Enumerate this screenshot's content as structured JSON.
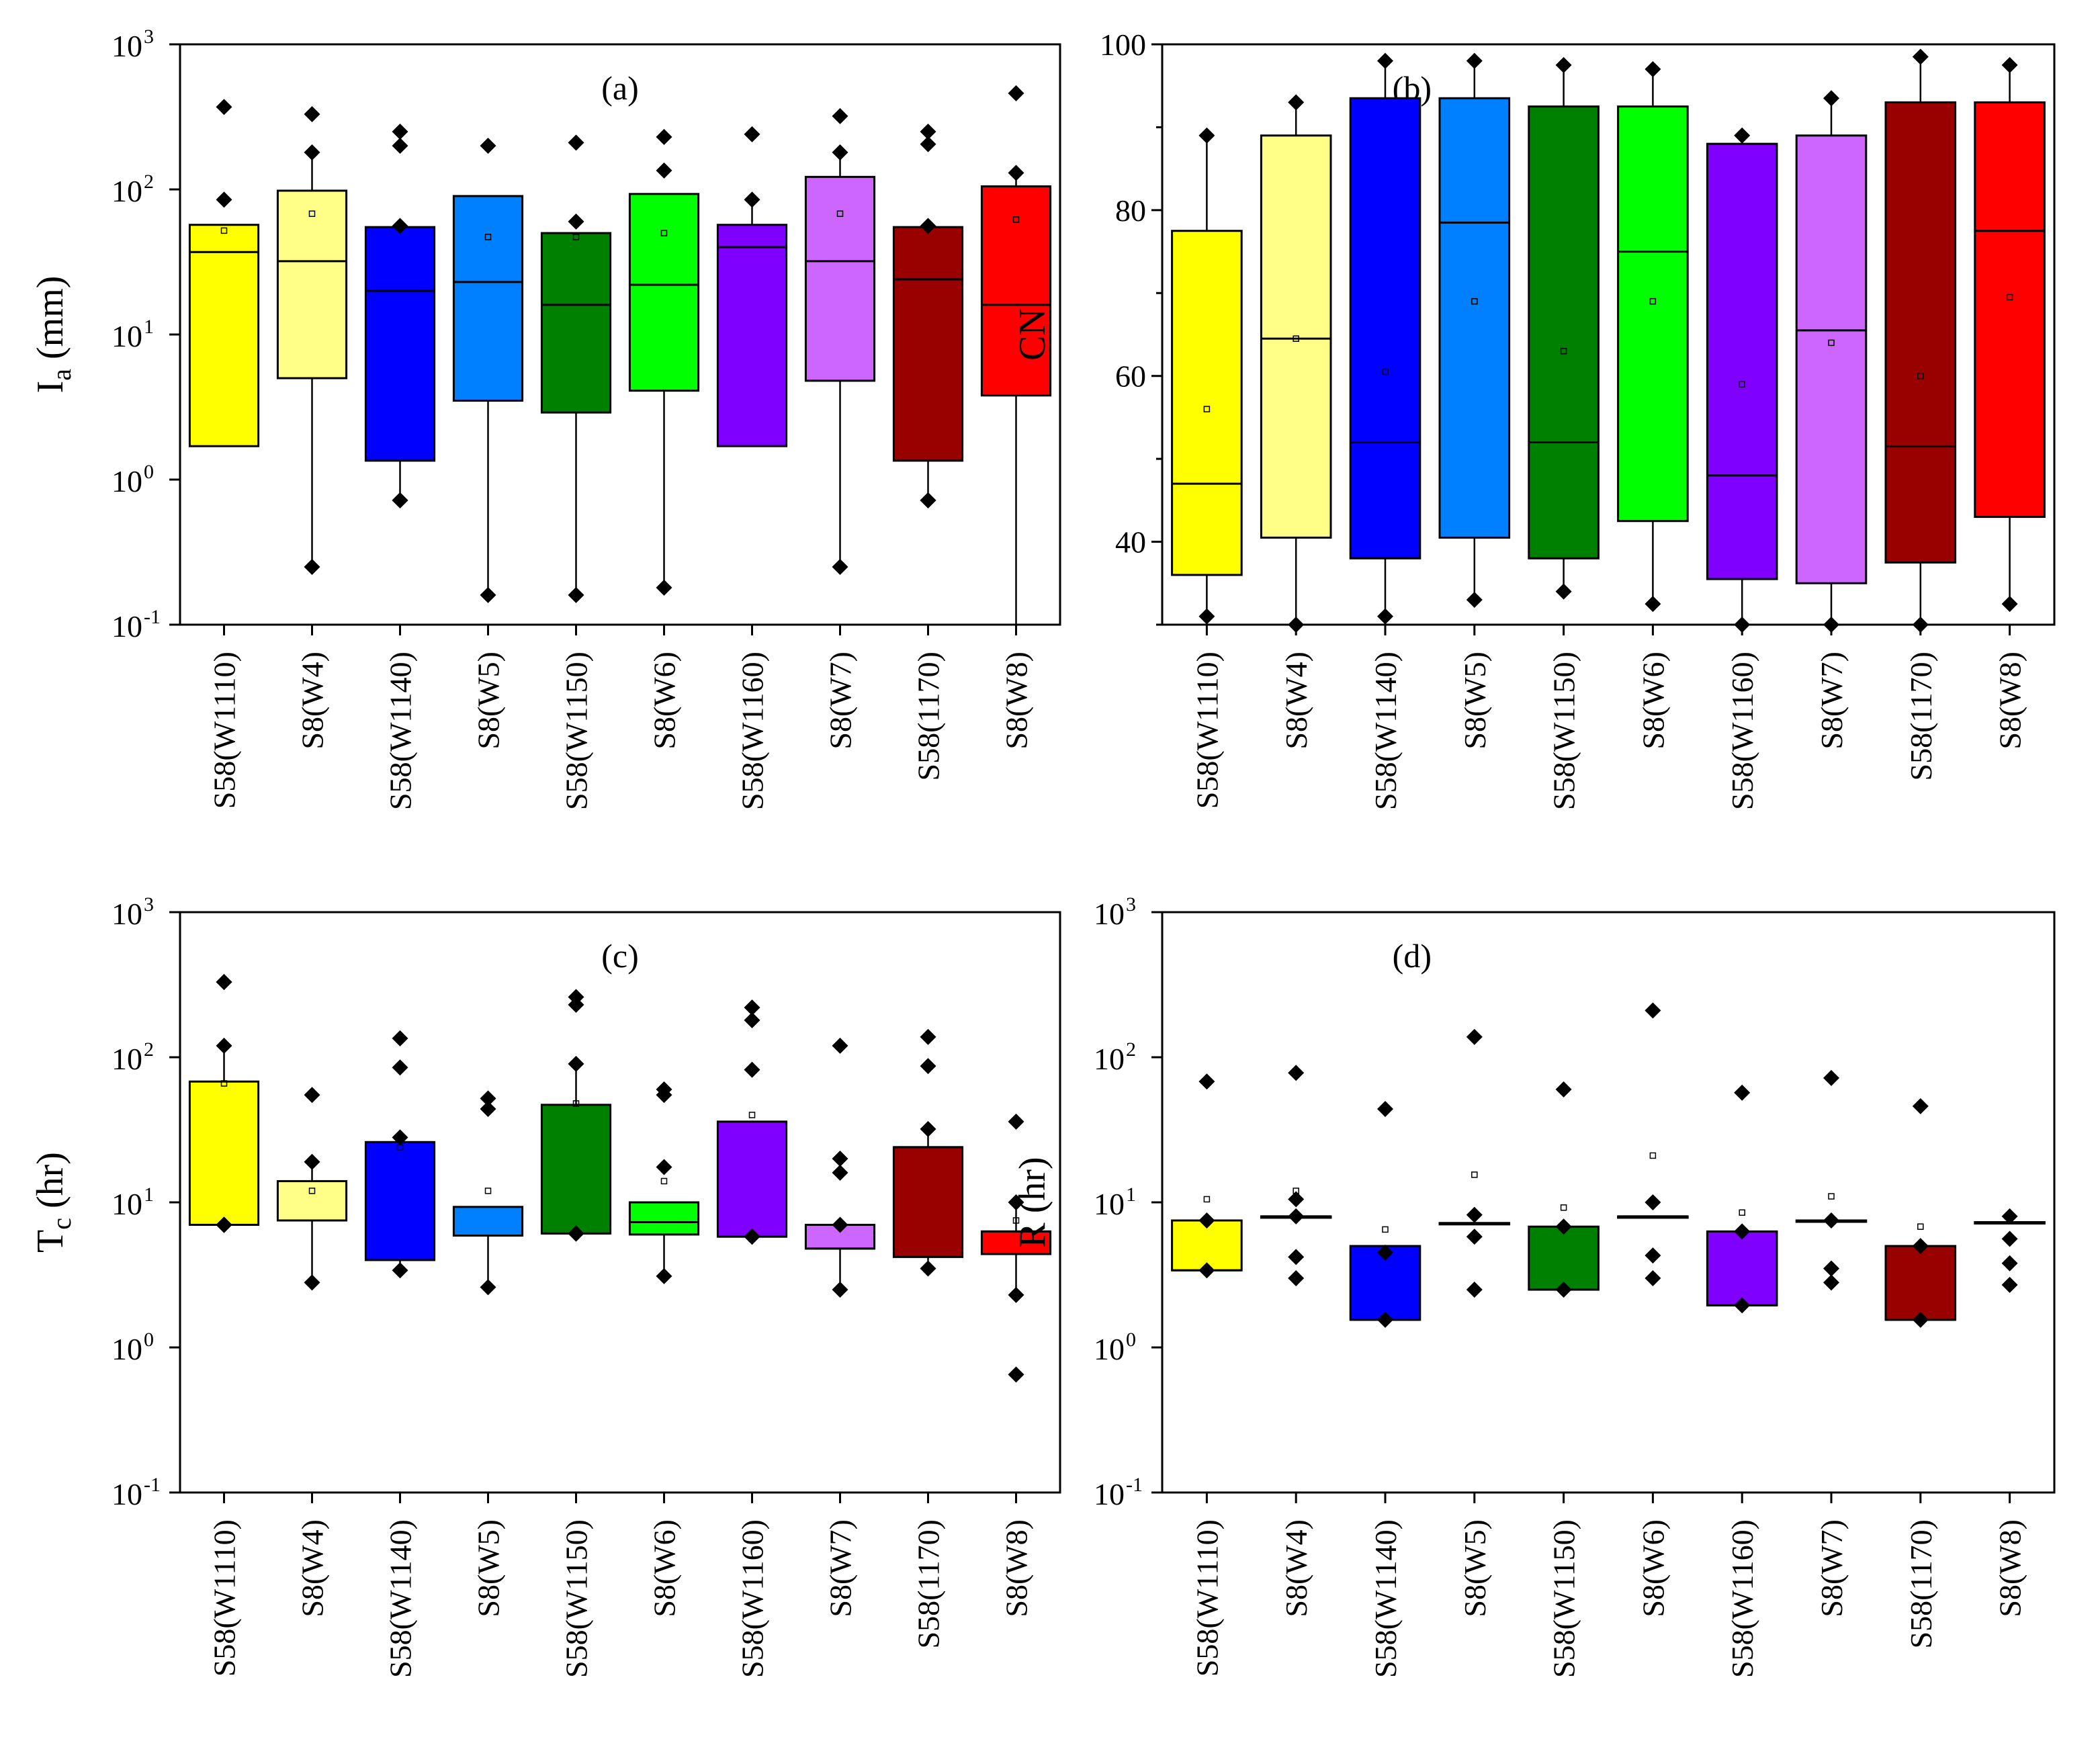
{
  "figure": {
    "categories": [
      "S58(W1110)",
      "S8(W4)",
      "S58(W1140)",
      "S8(W5)",
      "S58(W1150)",
      "S8(W6)",
      "S58(W1160)",
      "S8(W7)",
      "S58(1170)",
      "S8(W8)"
    ],
    "colors": [
      "#ffff00",
      "#ffff88",
      "#0000ff",
      "#0080ff",
      "#008000",
      "#00ff00",
      "#8000ff",
      "#cc66ff",
      "#990000",
      "#ff0000"
    ]
  },
  "chart_data": [
    {
      "id": "a",
      "type": "box",
      "panel_label": "(a)",
      "ylabel_main": "I",
      "ylabel_sub": "a",
      "ylabel_rest": " (mm)",
      "yscale": "log",
      "ylim": [
        0.1,
        1000
      ],
      "yticks": [
        {
          "base": "10",
          "exp": "-1"
        },
        {
          "base": "10",
          "exp": "0"
        },
        {
          "base": "10",
          "exp": "1"
        },
        {
          "base": "10",
          "exp": "2"
        },
        {
          "base": "10",
          "exp": "3"
        }
      ],
      "boxes": [
        {
          "q1": 1.7,
          "median": 37,
          "q3": 57,
          "mean": 52,
          "wlo": 1.7,
          "whi": 57,
          "points": [
            85,
            370
          ]
        },
        {
          "q1": 5,
          "median": 32,
          "q3": 98,
          "mean": 68,
          "wlo": 0.25,
          "whi": 180,
          "points": [
            0.25,
            180,
            330
          ]
        },
        {
          "q1": 1.35,
          "median": 20,
          "q3": 55,
          "mean": null,
          "wlo": 0.75,
          "whi": 55,
          "points": [
            0.72,
            0.72,
            56,
            200,
            250
          ]
        },
        {
          "q1": 3.5,
          "median": 23,
          "q3": 90,
          "mean": 47,
          "wlo": 0.16,
          "whi": 90,
          "points": [
            0.16,
            200
          ]
        },
        {
          "q1": 2.9,
          "median": 16,
          "q3": 50,
          "mean": 47,
          "wlo": 0.16,
          "whi": 50,
          "points": [
            0.16,
            60,
            210
          ]
        },
        {
          "q1": 4.1,
          "median": 22,
          "q3": 93,
          "mean": 50,
          "wlo": 0.18,
          "whi": 93,
          "points": [
            0.18,
            135,
            230
          ]
        },
        {
          "q1": 1.7,
          "median": 40,
          "q3": 57,
          "mean": null,
          "wlo": 1.7,
          "whi": 85,
          "points": [
            85,
            240
          ]
        },
        {
          "q1": 4.8,
          "median": 32,
          "q3": 122,
          "mean": 68,
          "wlo": 0.25,
          "whi": 180,
          "points": [
            0.25,
            180,
            320
          ]
        },
        {
          "q1": 1.35,
          "median": 24,
          "q3": 55,
          "mean": null,
          "wlo": 0.75,
          "whi": 55,
          "points": [
            0.72,
            0.72,
            56,
            205,
            250
          ]
        },
        {
          "q1": 3.8,
          "median": 16,
          "q3": 105,
          "mean": 62,
          "wlo": 0.1,
          "whi": 130,
          "points": [
            130,
            460
          ]
        }
      ]
    },
    {
      "id": "b",
      "type": "box",
      "panel_label": "(b)",
      "ylabel_main": "CN",
      "ylabel_sub": "",
      "ylabel_rest": "",
      "yscale": "linear",
      "ylim": [
        30,
        100
      ],
      "yticks": [
        {
          "base": "40",
          "exp": ""
        },
        {
          "base": "60",
          "exp": ""
        },
        {
          "base": "80",
          "exp": ""
        },
        {
          "base": "100",
          "exp": ""
        }
      ],
      "boxes": [
        {
          "q1": 36,
          "median": 47,
          "q3": 77.5,
          "mean": 56,
          "wlo": 31,
          "whi": 89,
          "points": [
            31,
            89
          ]
        },
        {
          "q1": 40.5,
          "median": 64.5,
          "q3": 89,
          "mean": 64.5,
          "wlo": 30,
          "whi": 93,
          "points": [
            30,
            93
          ]
        },
        {
          "q1": 38,
          "median": 52,
          "q3": 93.5,
          "mean": 60.5,
          "wlo": 31,
          "whi": 98,
          "points": [
            31,
            98
          ]
        },
        {
          "q1": 40.5,
          "median": 78.5,
          "q3": 93.5,
          "mean": 69,
          "wlo": 33,
          "whi": 98,
          "points": [
            33,
            98
          ]
        },
        {
          "q1": 38,
          "median": 52,
          "q3": 92.5,
          "mean": 63,
          "wlo": 34,
          "whi": 97.5,
          "points": [
            34,
            97.5
          ]
        },
        {
          "q1": 42.5,
          "median": 75,
          "q3": 92.5,
          "mean": 69,
          "wlo": 33,
          "whi": 97,
          "points": [
            32.5,
            97
          ]
        },
        {
          "q1": 35.5,
          "median": 48,
          "q3": 88,
          "mean": 59,
          "wlo": 30,
          "whi": 89,
          "points": [
            30,
            89
          ]
        },
        {
          "q1": 35,
          "median": 65.5,
          "q3": 89,
          "mean": 64,
          "wlo": 30,
          "whi": 93.5,
          "points": [
            30,
            93.5
          ]
        },
        {
          "q1": 37.5,
          "median": 51.5,
          "q3": 93,
          "mean": 60,
          "wlo": 30,
          "whi": 98.5,
          "points": [
            30,
            98.5
          ]
        },
        {
          "q1": 43,
          "median": 77.5,
          "q3": 93,
          "mean": 69.5,
          "wlo": 33,
          "whi": 97.5,
          "points": [
            32.5,
            97.5
          ]
        }
      ]
    },
    {
      "id": "c",
      "type": "box",
      "panel_label": "(c)",
      "ylabel_main": "T",
      "ylabel_sub": "c",
      "ylabel_rest": "  (hr)",
      "yscale": "log",
      "ylim": [
        0.1,
        1000
      ],
      "yticks": [
        {
          "base": "10",
          "exp": "-1"
        },
        {
          "base": "10",
          "exp": "0"
        },
        {
          "base": "10",
          "exp": "1"
        },
        {
          "base": "10",
          "exp": "2"
        },
        {
          "base": "10",
          "exp": "3"
        }
      ],
      "boxes": [
        {
          "q1": 7,
          "median": 7,
          "q3": 68,
          "mean": 66,
          "wlo": 7,
          "whi": 120,
          "points": [
            7,
            7,
            7,
            7,
            7,
            120,
            330,
            330
          ]
        },
        {
          "q1": 7.5,
          "median": 7.5,
          "q3": 14,
          "mean": 12,
          "wlo": 2.8,
          "whi": 19,
          "points": [
            2.8,
            19,
            55
          ]
        },
        {
          "q1": 4,
          "median": 26,
          "q3": 26,
          "mean": 24,
          "wlo": 3.4,
          "whi": 26,
          "points": [
            3.4,
            28,
            85,
            135
          ]
        },
        {
          "q1": 5.9,
          "median": 5.9,
          "q3": 9.3,
          "mean": 12,
          "wlo": 2.6,
          "whi": 9.3,
          "points": [
            2.6,
            44,
            52
          ]
        },
        {
          "q1": 6.1,
          "median": 6.1,
          "q3": 47,
          "mean": 48,
          "wlo": 6.1,
          "whi": 90,
          "points": [
            6.1,
            6.1,
            6.1,
            6.1,
            6.1,
            90,
            230,
            260
          ]
        },
        {
          "q1": 6,
          "median": 7.3,
          "q3": 10,
          "mean": 14,
          "wlo": 3.1,
          "whi": 10,
          "points": [
            3.1,
            17.5,
            55,
            60
          ]
        },
        {
          "q1": 5.8,
          "median": 5.8,
          "q3": 36,
          "mean": 40,
          "wlo": 5.8,
          "whi": 36,
          "points": [
            5.8,
            5.8,
            5.8,
            5.8,
            82,
            180,
            220
          ]
        },
        {
          "q1": 4.8,
          "median": 4.8,
          "q3": 7,
          "mean": null,
          "wlo": 2.5,
          "whi": 7,
          "points": [
            2.5,
            7,
            16,
            20,
            120
          ]
        },
        {
          "q1": 4.2,
          "median": 24,
          "q3": 24,
          "mean": null,
          "wlo": 3.5,
          "whi": 32,
          "points": [
            3.5,
            32,
            87,
            138
          ]
        },
        {
          "q1": 4.4,
          "median": 6.3,
          "q3": 6.3,
          "mean": 7.5,
          "wlo": 2.3,
          "whi": 10,
          "points": [
            0.65,
            2.3,
            10,
            36
          ]
        }
      ]
    },
    {
      "id": "d",
      "type": "box",
      "panel_label": "(d)",
      "ylabel_main": "R",
      "ylabel_sub": "",
      "ylabel_rest": " (hr)",
      "yscale": "log",
      "ylim": [
        0.1,
        1000
      ],
      "yticks": [
        {
          "base": "10",
          "exp": "-1"
        },
        {
          "base": "10",
          "exp": "0"
        },
        {
          "base": "10",
          "exp": "1"
        },
        {
          "base": "10",
          "exp": "2"
        },
        {
          "base": "10",
          "exp": "3"
        }
      ],
      "boxes": [
        {
          "q1": 3.4,
          "median": 3.4,
          "q3": 7.5,
          "mean": 10.5,
          "wlo": 3.4,
          "whi": 7.5,
          "points": [
            3.4,
            7.5,
            68
          ]
        },
        {
          "q1": 8,
          "median": 8,
          "q3": 8,
          "mean": 12,
          "wlo": 8,
          "whi": 8,
          "points": [
            3,
            4.2,
            8,
            10.5,
            78
          ]
        },
        {
          "q1": 1.55,
          "median": 1.55,
          "q3": 5,
          "mean": 6.5,
          "wlo": 1.55,
          "whi": 5,
          "points": [
            1.55,
            4.5,
            44
          ]
        },
        {
          "q1": 7.2,
          "median": 7.2,
          "q3": 7.2,
          "mean": 15.5,
          "wlo": 7.2,
          "whi": 7.2,
          "points": [
            2.5,
            5.8,
            8.2,
            138
          ]
        },
        {
          "q1": 2.5,
          "median": 2.5,
          "q3": 6.8,
          "mean": 9.2,
          "wlo": 2.5,
          "whi": 6.8,
          "points": [
            2.5,
            6.8,
            60
          ]
        },
        {
          "q1": 8,
          "median": 8,
          "q3": 8,
          "mean": 21,
          "wlo": 8,
          "whi": 8,
          "points": [
            3,
            4.3,
            10,
            210
          ]
        },
        {
          "q1": 1.95,
          "median": 1.95,
          "q3": 6.3,
          "mean": 8.5,
          "wlo": 1.95,
          "whi": 6.3,
          "points": [
            1.95,
            6.3,
            57
          ]
        },
        {
          "q1": 7.5,
          "median": 7.5,
          "q3": 7.5,
          "mean": 11,
          "wlo": 7.5,
          "whi": 7.5,
          "points": [
            2.8,
            3.5,
            7.5,
            72
          ]
        },
        {
          "q1": 1.55,
          "median": 1.55,
          "q3": 5,
          "mean": 6.8,
          "wlo": 1.55,
          "whi": 5,
          "points": [
            1.55,
            5,
            46
          ]
        },
        {
          "q1": 7.3,
          "median": 7.3,
          "q3": 7.3,
          "mean": null,
          "wlo": 7.3,
          "whi": 7.3,
          "points": [
            2.7,
            3.8,
            5.6,
            8
          ]
        }
      ]
    }
  ]
}
